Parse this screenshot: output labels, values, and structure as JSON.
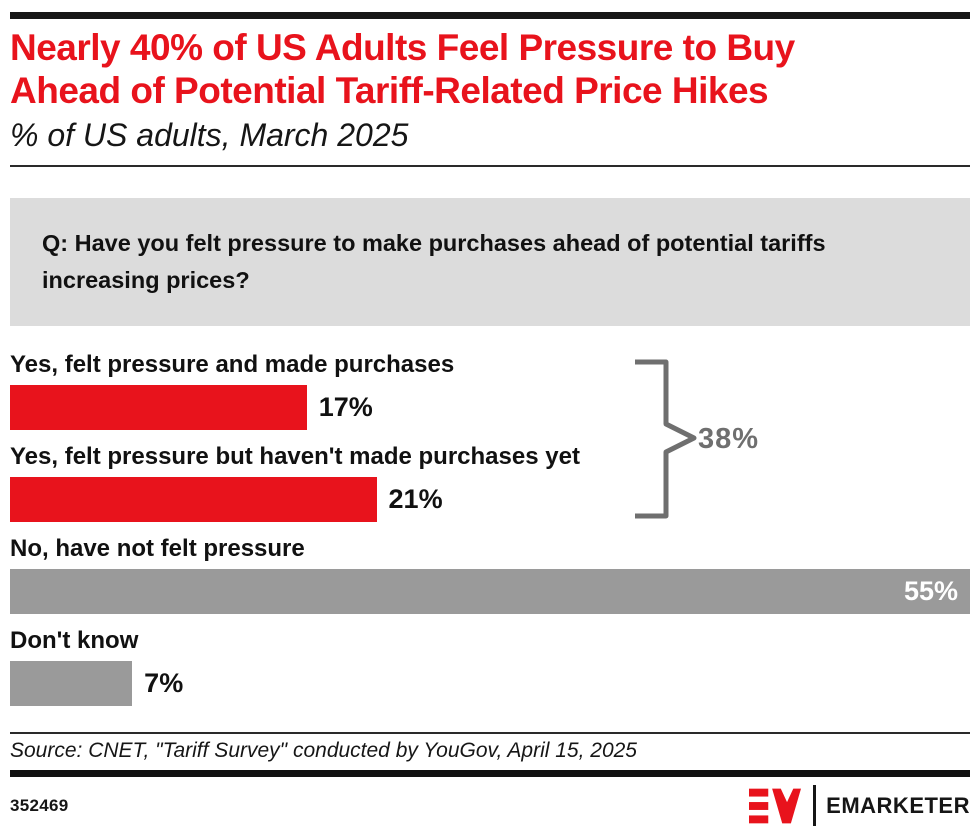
{
  "page": {
    "title_line1": "Nearly 40% of US Adults Feel Pressure to Buy",
    "title_line2": "Ahead of Potential Tariff-Related Price Hikes",
    "subtitle": "% of US adults, March 2025",
    "question": "Q: Have you felt pressure to make purchases ahead of potential tariffs increasing prices?",
    "source": "Source: CNET, \"Tariff Survey\" conducted by YouGov, April 15, 2025",
    "chart_id": "352469",
    "brand_name": "EMARKETER"
  },
  "colors": {
    "accent_red": "#e8131c",
    "bar_gray": "#9a9a9a",
    "question_box_gray": "#dcdcdc",
    "bracket_gray": "#6f6f6f",
    "rule_black": "#161616"
  },
  "chart_data": {
    "type": "bar",
    "orientation": "horizontal",
    "unit": "%",
    "title": "Nearly 40% of US Adults Feel Pressure to Buy Ahead of Potential Tariff-Related Price Hikes",
    "subtitle": "% of US adults, March 2025",
    "question": "Q: Have you felt pressure to make purchases ahead of potential tariffs increasing prices?",
    "categories": [
      "Yes, felt pressure and made purchases",
      "Yes, felt pressure but haven't made purchases yet",
      "No, have not felt pressure",
      "Don't know"
    ],
    "values": [
      17,
      21,
      55,
      7
    ],
    "xmax_scale": 55,
    "grid": false,
    "legend": false,
    "rows": [
      {
        "label": "Yes, felt pressure and made purchases",
        "value": 17,
        "value_label": "17%",
        "color": "red",
        "value_position": "outside"
      },
      {
        "label": "Yes, felt pressure but haven't made purchases yet",
        "value": 21,
        "value_label": "21%",
        "color": "red",
        "value_position": "outside"
      },
      {
        "label": "No, have not felt pressure",
        "value": 55,
        "value_label": "55%",
        "color": "gray",
        "value_position": "inside"
      },
      {
        "label": "Don't know",
        "value": 7,
        "value_label": "7%",
        "color": "gray",
        "value_position": "outside"
      }
    ],
    "annotation": {
      "text": "38%",
      "combines_rows": [
        0,
        1
      ],
      "meaning": "sum of the two 'Yes' answers"
    }
  }
}
